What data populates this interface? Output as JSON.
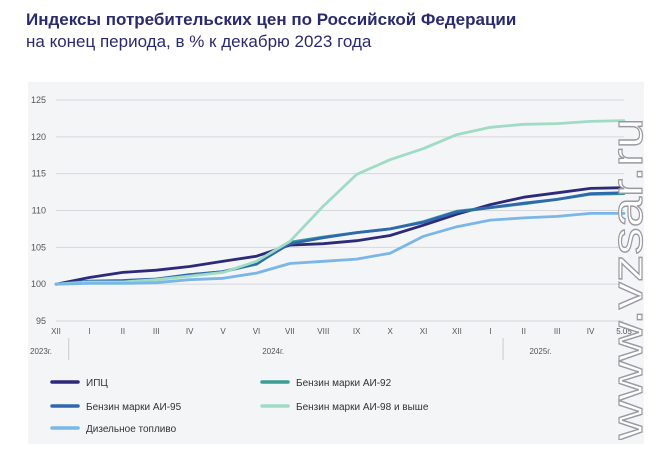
{
  "header": {
    "title": "Индексы потребительских цен по Российской Федерации",
    "subtitle": "на конец периода, в % к декабрю 2023 года"
  },
  "watermark": {
    "text": "www.vzsar.ru"
  },
  "chart_data": {
    "type": "line",
    "title": "Индексы потребительских цен по Российской Федерации",
    "subtitle": "на конец периода, в % к декабрю 2023 года",
    "ylim": [
      95,
      125
    ],
    "yticks": [
      95,
      100,
      105,
      110,
      115,
      120,
      125
    ],
    "grid": true,
    "legend_position": "bottom",
    "x_labels": [
      "XII",
      "I",
      "II",
      "III",
      "IV",
      "V",
      "VI",
      "VII",
      "VIII",
      "IX",
      "X",
      "XI",
      "XII",
      "I",
      "II",
      "III",
      "IV",
      "5.05"
    ],
    "year_labels": [
      {
        "label": "2023г.",
        "index": 0
      },
      {
        "label": "2024г.",
        "index": 6.5
      },
      {
        "label": "2025г.",
        "index": 14.5
      }
    ],
    "series": [
      {
        "name": "ИПЦ",
        "color": "#2e2a7a",
        "values": [
          100,
          100.9,
          101.6,
          101.9,
          102.4,
          103.1,
          103.8,
          105.3,
          105.5,
          105.9,
          106.6,
          108.0,
          109.5,
          110.8,
          111.8,
          112.4,
          113.0,
          113.1
        ]
      },
      {
        "name": "Бензин марки АИ-92",
        "color": "#3a9e94",
        "values": [
          100,
          100.3,
          100.4,
          100.6,
          101.2,
          101.7,
          102.7,
          105.7,
          106.4,
          107.0,
          107.5,
          108.5,
          109.9,
          110.4,
          110.9,
          111.5,
          112.2,
          112.3
        ]
      },
      {
        "name": "Бензин марки АИ-95",
        "color": "#2f68ad",
        "values": [
          100,
          100.4,
          100.5,
          100.7,
          101.3,
          101.7,
          102.8,
          105.5,
          106.3,
          107.0,
          107.5,
          108.4,
          109.8,
          110.4,
          111.0,
          111.5,
          112.3,
          112.4
        ]
      },
      {
        "name": "Бензин марки АИ-98 и выше",
        "color": "#9fdcc3",
        "values": [
          100,
          100.3,
          100.3,
          100.6,
          101.1,
          101.6,
          103.1,
          105.8,
          110.6,
          114.9,
          116.9,
          118.4,
          120.3,
          121.3,
          121.7,
          121.8,
          122.1,
          122.2
        ]
      },
      {
        "name": "Дизельное топливо",
        "color": "#7ab6e8",
        "values": [
          100,
          100.1,
          100.1,
          100.2,
          100.6,
          100.8,
          101.5,
          102.8,
          103.1,
          103.4,
          104.2,
          106.5,
          107.8,
          108.7,
          109.0,
          109.2,
          109.6,
          109.6
        ]
      }
    ]
  }
}
